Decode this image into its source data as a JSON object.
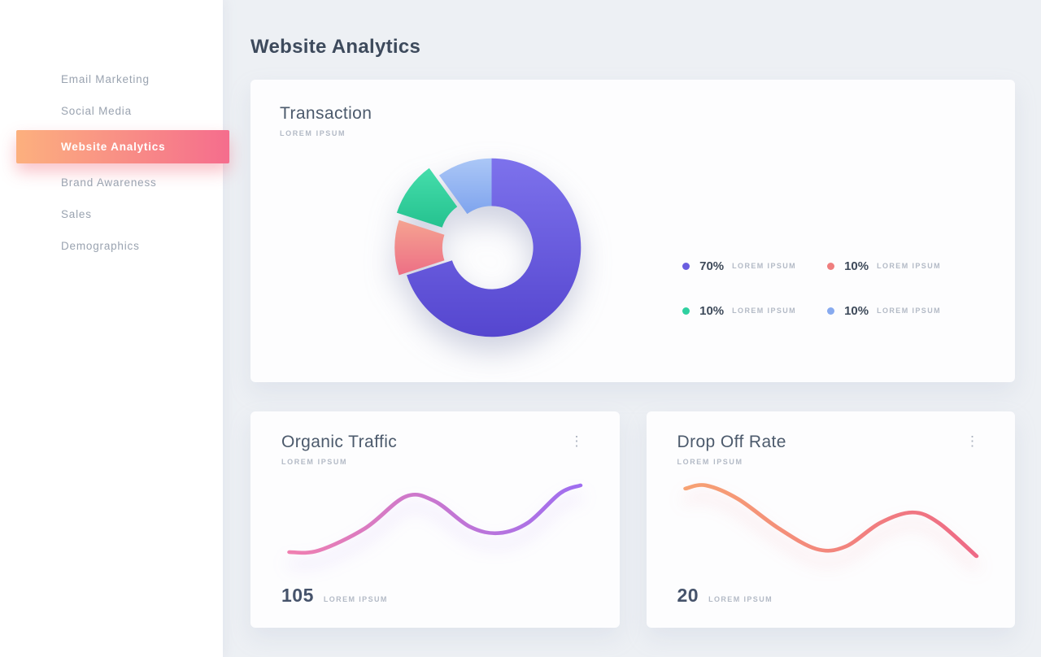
{
  "page": {
    "title": "Website Analytics"
  },
  "sidebar": {
    "items": [
      {
        "label": "Email Marketing",
        "active": false
      },
      {
        "label": "Social Media",
        "active": false
      },
      {
        "label": "Website Analytics",
        "active": true
      },
      {
        "label": "Brand Awareness",
        "active": false
      },
      {
        "label": "Sales",
        "active": false
      },
      {
        "label": "Demographics",
        "active": false
      }
    ],
    "active_gradient": [
      "#fcb07e",
      "#f56d8d"
    ]
  },
  "icons": {
    "kebab_menu": "⋮"
  },
  "chart_data": [
    {
      "id": "transaction-donut",
      "type": "pie",
      "donut": true,
      "title": "Transaction",
      "subtitle": "LOREM IPSUM",
      "legend_position": "right",
      "slices": [
        {
          "label": "LOREM IPSUM",
          "display": "70%",
          "value": 70,
          "color": "#7d72ec",
          "color2": "#5546cf",
          "dot": "#6a5de0",
          "offset": 0
        },
        {
          "label": "LOREM IPSUM",
          "display": "10%",
          "value": 10,
          "color": "#f5a391",
          "color2": "#ed6f85",
          "dot": "#ef7e7e",
          "offset": 10
        },
        {
          "label": "LOREM IPSUM",
          "display": "10%",
          "value": 10,
          "color": "#45ddab",
          "color2": "#25c28f",
          "dot": "#2fd0a0",
          "offset": 16
        },
        {
          "label": "LOREM IPSUM",
          "display": "10%",
          "value": 10,
          "color": "#abc7f6",
          "color2": "#7fa4ee",
          "dot": "#87aaef",
          "offset": 0
        }
      ]
    },
    {
      "id": "organic-traffic",
      "type": "line",
      "title": "Organic Traffic",
      "subtitle": "LOREM IPSUM",
      "value": "105",
      "value_label": "LOREM IPSUM",
      "gradient": [
        "#f07fb0",
        "#9f6ef0"
      ],
      "points": {
        "x": [
          0,
          10,
          26,
          40,
          50,
          62,
          72,
          82,
          93,
          100
        ],
        "y": [
          92,
          90,
          62,
          22,
          28,
          60,
          68,
          55,
          18,
          8
        ]
      }
    },
    {
      "id": "drop-off-rate",
      "type": "line",
      "title": "Drop Off Rate",
      "subtitle": "LOREM IPSUM",
      "value": "20",
      "value_label": "LOREM IPSUM",
      "gradient": [
        "#f7a273",
        "#ee6a86"
      ],
      "points": {
        "x": [
          0,
          7,
          18,
          32,
          45,
          55,
          67,
          78,
          87,
          100
        ],
        "y": [
          12,
          8,
          25,
          62,
          88,
          85,
          55,
          42,
          55,
          97
        ]
      }
    }
  ]
}
